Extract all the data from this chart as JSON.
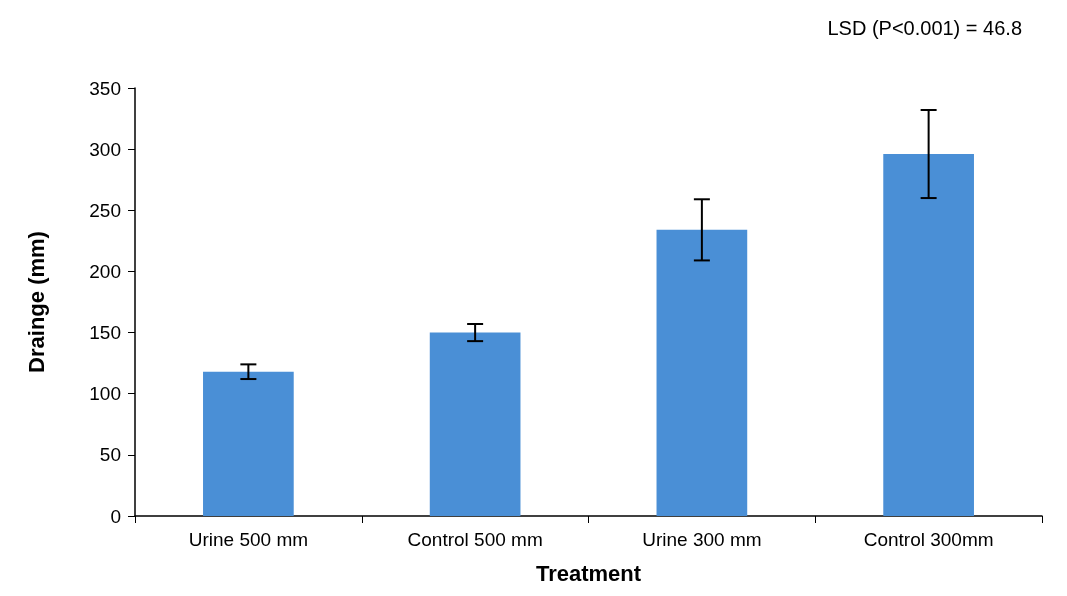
{
  "chart_data": {
    "type": "bar",
    "xlabel": "Treatment",
    "ylabel": "Drainge (mm)",
    "categories": [
      "Urine 500 mm",
      "Control 500 mm",
      "Urine 300 mm",
      "Control 300mm"
    ],
    "values": [
      118,
      150,
      234,
      296
    ],
    "errors": [
      6,
      7,
      25,
      36
    ],
    "color": "#4a8fd6",
    "ylim": [
      0,
      350
    ],
    "yticks": [
      0,
      50,
      100,
      150,
      200,
      250,
      300,
      350
    ],
    "grid": false,
    "annotations": [
      "LSD (P<0.001) = 46.8"
    ]
  }
}
